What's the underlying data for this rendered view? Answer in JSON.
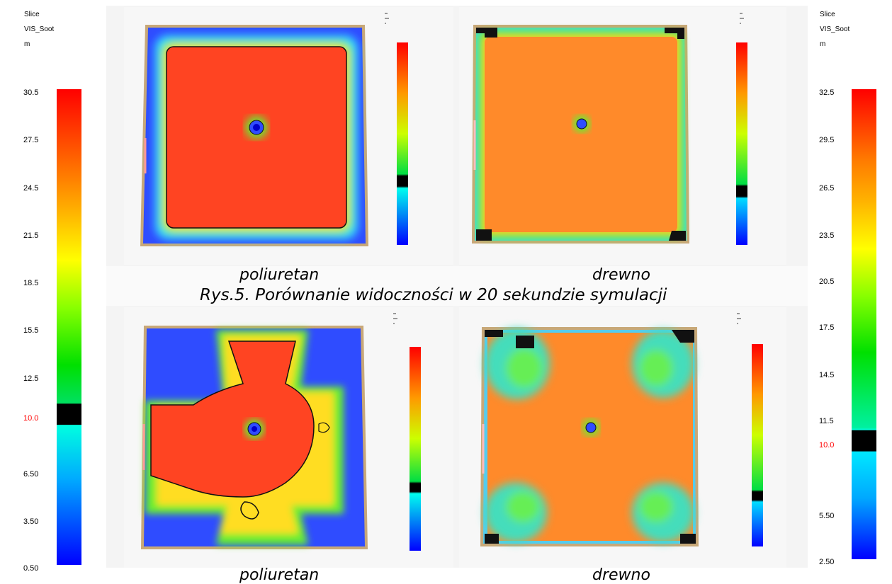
{
  "legend_left": {
    "header": [
      "Slice",
      "VIS_Soot",
      "m"
    ],
    "ticks": [
      "30.5",
      "27.5",
      "24.5",
      "21.5",
      "18.5",
      "15.5",
      "12.5",
      "10.0",
      "6.50",
      "3.50",
      "0.50"
    ],
    "highlight_tick": "10.0",
    "highlight_color": "#ff0000"
  },
  "legend_right": {
    "header": [
      "Slice",
      "VIS_Soot",
      "m"
    ],
    "ticks": [
      "32.5",
      "29.5",
      "26.5",
      "23.5",
      "20.5",
      "17.5",
      "14.5",
      "11.5",
      "10.0",
      "5.50",
      "2.50"
    ],
    "highlight_tick": "10.0",
    "highlight_color": "#ff0000"
  },
  "figures": {
    "top_left_label": "poliuretan",
    "top_right_label": "drewno",
    "figure_caption": "Rys.5. Porównanie widoczności w 20 sekundzie symulacji",
    "bottom_left_label": "poliuretan",
    "bottom_right_label": "drewno"
  },
  "colors": {
    "soot_red": "#ff4422",
    "wood_orange": "#ff8a2a",
    "low_blue": "#2f4cff",
    "frame_tan": "#c8a878",
    "green": "#33dd44"
  }
}
